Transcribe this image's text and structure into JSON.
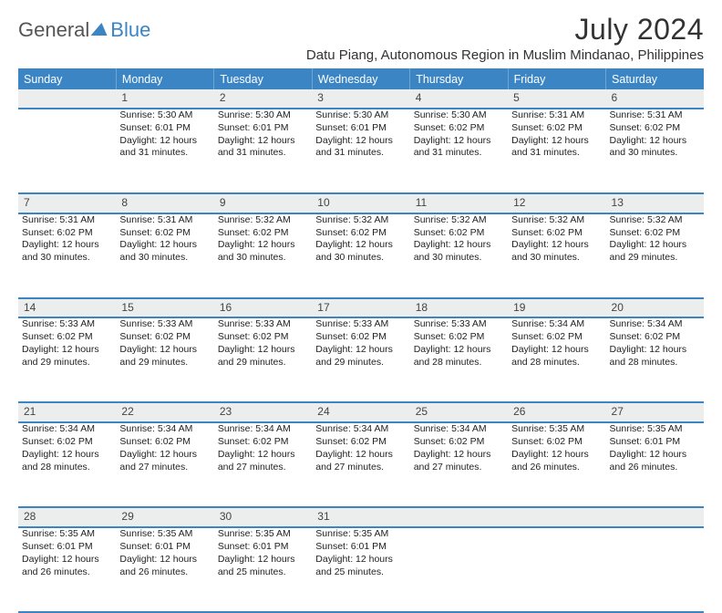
{
  "brand": {
    "part1": "General",
    "part2": "Blue"
  },
  "title": "July 2024",
  "location": "Datu Piang, Autonomous Region in Muslim Mindanao, Philippines",
  "colors": {
    "header_bg": "#3b85c4",
    "header_text": "#ffffff",
    "daynum_bg": "#eceded",
    "row_border": "#3b85c4",
    "text": "#222222",
    "background": "#ffffff"
  },
  "typography": {
    "title_fontsize": 32,
    "location_fontsize": 15,
    "weekday_fontsize": 12.5,
    "daynum_fontsize": 12,
    "cell_fontsize": 10.5
  },
  "weekdays": [
    "Sunday",
    "Monday",
    "Tuesday",
    "Wednesday",
    "Thursday",
    "Friday",
    "Saturday"
  ],
  "columns": 7,
  "rows": 5,
  "cells": [
    [
      {
        "day": "",
        "lines": []
      },
      {
        "day": "1",
        "lines": [
          "Sunrise: 5:30 AM",
          "Sunset: 6:01 PM",
          "Daylight: 12 hours and 31 minutes."
        ]
      },
      {
        "day": "2",
        "lines": [
          "Sunrise: 5:30 AM",
          "Sunset: 6:01 PM",
          "Daylight: 12 hours and 31 minutes."
        ]
      },
      {
        "day": "3",
        "lines": [
          "Sunrise: 5:30 AM",
          "Sunset: 6:01 PM",
          "Daylight: 12 hours and 31 minutes."
        ]
      },
      {
        "day": "4",
        "lines": [
          "Sunrise: 5:30 AM",
          "Sunset: 6:02 PM",
          "Daylight: 12 hours and 31 minutes."
        ]
      },
      {
        "day": "5",
        "lines": [
          "Sunrise: 5:31 AM",
          "Sunset: 6:02 PM",
          "Daylight: 12 hours and 31 minutes."
        ]
      },
      {
        "day": "6",
        "lines": [
          "Sunrise: 5:31 AM",
          "Sunset: 6:02 PM",
          "Daylight: 12 hours and 30 minutes."
        ]
      }
    ],
    [
      {
        "day": "7",
        "lines": [
          "Sunrise: 5:31 AM",
          "Sunset: 6:02 PM",
          "Daylight: 12 hours and 30 minutes."
        ]
      },
      {
        "day": "8",
        "lines": [
          "Sunrise: 5:31 AM",
          "Sunset: 6:02 PM",
          "Daylight: 12 hours and 30 minutes."
        ]
      },
      {
        "day": "9",
        "lines": [
          "Sunrise: 5:32 AM",
          "Sunset: 6:02 PM",
          "Daylight: 12 hours and 30 minutes."
        ]
      },
      {
        "day": "10",
        "lines": [
          "Sunrise: 5:32 AM",
          "Sunset: 6:02 PM",
          "Daylight: 12 hours and 30 minutes."
        ]
      },
      {
        "day": "11",
        "lines": [
          "Sunrise: 5:32 AM",
          "Sunset: 6:02 PM",
          "Daylight: 12 hours and 30 minutes."
        ]
      },
      {
        "day": "12",
        "lines": [
          "Sunrise: 5:32 AM",
          "Sunset: 6:02 PM",
          "Daylight: 12 hours and 30 minutes."
        ]
      },
      {
        "day": "13",
        "lines": [
          "Sunrise: 5:32 AM",
          "Sunset: 6:02 PM",
          "Daylight: 12 hours and 29 minutes."
        ]
      }
    ],
    [
      {
        "day": "14",
        "lines": [
          "Sunrise: 5:33 AM",
          "Sunset: 6:02 PM",
          "Daylight: 12 hours and 29 minutes."
        ]
      },
      {
        "day": "15",
        "lines": [
          "Sunrise: 5:33 AM",
          "Sunset: 6:02 PM",
          "Daylight: 12 hours and 29 minutes."
        ]
      },
      {
        "day": "16",
        "lines": [
          "Sunrise: 5:33 AM",
          "Sunset: 6:02 PM",
          "Daylight: 12 hours and 29 minutes."
        ]
      },
      {
        "day": "17",
        "lines": [
          "Sunrise: 5:33 AM",
          "Sunset: 6:02 PM",
          "Daylight: 12 hours and 29 minutes."
        ]
      },
      {
        "day": "18",
        "lines": [
          "Sunrise: 5:33 AM",
          "Sunset: 6:02 PM",
          "Daylight: 12 hours and 28 minutes."
        ]
      },
      {
        "day": "19",
        "lines": [
          "Sunrise: 5:34 AM",
          "Sunset: 6:02 PM",
          "Daylight: 12 hours and 28 minutes."
        ]
      },
      {
        "day": "20",
        "lines": [
          "Sunrise: 5:34 AM",
          "Sunset: 6:02 PM",
          "Daylight: 12 hours and 28 minutes."
        ]
      }
    ],
    [
      {
        "day": "21",
        "lines": [
          "Sunrise: 5:34 AM",
          "Sunset: 6:02 PM",
          "Daylight: 12 hours and 28 minutes."
        ]
      },
      {
        "day": "22",
        "lines": [
          "Sunrise: 5:34 AM",
          "Sunset: 6:02 PM",
          "Daylight: 12 hours and 27 minutes."
        ]
      },
      {
        "day": "23",
        "lines": [
          "Sunrise: 5:34 AM",
          "Sunset: 6:02 PM",
          "Daylight: 12 hours and 27 minutes."
        ]
      },
      {
        "day": "24",
        "lines": [
          "Sunrise: 5:34 AM",
          "Sunset: 6:02 PM",
          "Daylight: 12 hours and 27 minutes."
        ]
      },
      {
        "day": "25",
        "lines": [
          "Sunrise: 5:34 AM",
          "Sunset: 6:02 PM",
          "Daylight: 12 hours and 27 minutes."
        ]
      },
      {
        "day": "26",
        "lines": [
          "Sunrise: 5:35 AM",
          "Sunset: 6:02 PM",
          "Daylight: 12 hours and 26 minutes."
        ]
      },
      {
        "day": "27",
        "lines": [
          "Sunrise: 5:35 AM",
          "Sunset: 6:01 PM",
          "Daylight: 12 hours and 26 minutes."
        ]
      }
    ],
    [
      {
        "day": "28",
        "lines": [
          "Sunrise: 5:35 AM",
          "Sunset: 6:01 PM",
          "Daylight: 12 hours and 26 minutes."
        ]
      },
      {
        "day": "29",
        "lines": [
          "Sunrise: 5:35 AM",
          "Sunset: 6:01 PM",
          "Daylight: 12 hours and 26 minutes."
        ]
      },
      {
        "day": "30",
        "lines": [
          "Sunrise: 5:35 AM",
          "Sunset: 6:01 PM",
          "Daylight: 12 hours and 25 minutes."
        ]
      },
      {
        "day": "31",
        "lines": [
          "Sunrise: 5:35 AM",
          "Sunset: 6:01 PM",
          "Daylight: 12 hours and 25 minutes."
        ]
      },
      {
        "day": "",
        "lines": []
      },
      {
        "day": "",
        "lines": []
      },
      {
        "day": "",
        "lines": []
      }
    ]
  ]
}
